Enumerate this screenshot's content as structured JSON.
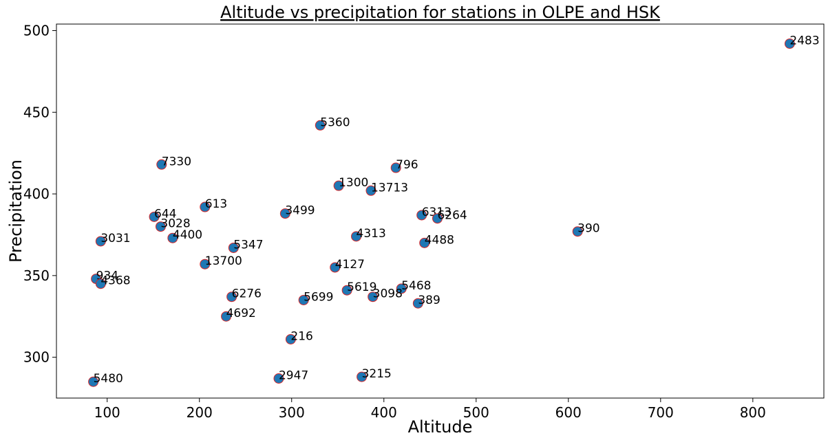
{
  "chart_data": {
    "type": "scatter",
    "title": "Altitude vs precipitation for stations in OLPE and HSK",
    "xlabel": "Altitude",
    "ylabel": "Precipitation",
    "xlim": [
      45,
      877
    ],
    "ylim": [
      275,
      504
    ],
    "xticks": [
      100,
      200,
      300,
      400,
      500,
      600,
      700,
      800
    ],
    "yticks": [
      300,
      350,
      400,
      450,
      500
    ],
    "grid": false,
    "marker_color": "#1f77b4",
    "marker_edge_color": "#d62728",
    "points": [
      {
        "label": "2483",
        "x": 840,
        "y": 492
      },
      {
        "label": "5360",
        "x": 331,
        "y": 442
      },
      {
        "label": "7330",
        "x": 159,
        "y": 418
      },
      {
        "label": "796",
        "x": 413,
        "y": 416
      },
      {
        "label": "1300",
        "x": 351,
        "y": 405
      },
      {
        "label": "13713",
        "x": 386,
        "y": 402
      },
      {
        "label": "613",
        "x": 206,
        "y": 392
      },
      {
        "label": "3499",
        "x": 293,
        "y": 388
      },
      {
        "label": "6313",
        "x": 441,
        "y": 387
      },
      {
        "label": "6264",
        "x": 458,
        "y": 385
      },
      {
        "label": "644",
        "x": 151,
        "y": 386
      },
      {
        "label": "3028",
        "x": 158,
        "y": 380
      },
      {
        "label": "390",
        "x": 610,
        "y": 377
      },
      {
        "label": "4313",
        "x": 370,
        "y": 374
      },
      {
        "label": "4400",
        "x": 171,
        "y": 373
      },
      {
        "label": "3031",
        "x": 93,
        "y": 371
      },
      {
        "label": "4488",
        "x": 444,
        "y": 370
      },
      {
        "label": "5347",
        "x": 237,
        "y": 367
      },
      {
        "label": "13700",
        "x": 206,
        "y": 357
      },
      {
        "label": "4127",
        "x": 347,
        "y": 355
      },
      {
        "label": "934",
        "x": 88,
        "y": 348
      },
      {
        "label": "4368",
        "x": 93,
        "y": 345
      },
      {
        "label": "5619",
        "x": 360,
        "y": 341
      },
      {
        "label": "5468",
        "x": 419,
        "y": 342
      },
      {
        "label": "3098",
        "x": 388,
        "y": 337
      },
      {
        "label": "6276",
        "x": 235,
        "y": 337
      },
      {
        "label": "5699",
        "x": 313,
        "y": 335
      },
      {
        "label": "389",
        "x": 437,
        "y": 333
      },
      {
        "label": "4692",
        "x": 229,
        "y": 325
      },
      {
        "label": "216",
        "x": 299,
        "y": 311
      },
      {
        "label": "3215",
        "x": 376,
        "y": 288
      },
      {
        "label": "2947",
        "x": 286,
        "y": 287
      },
      {
        "label": "5480",
        "x": 85,
        "y": 285
      }
    ]
  }
}
